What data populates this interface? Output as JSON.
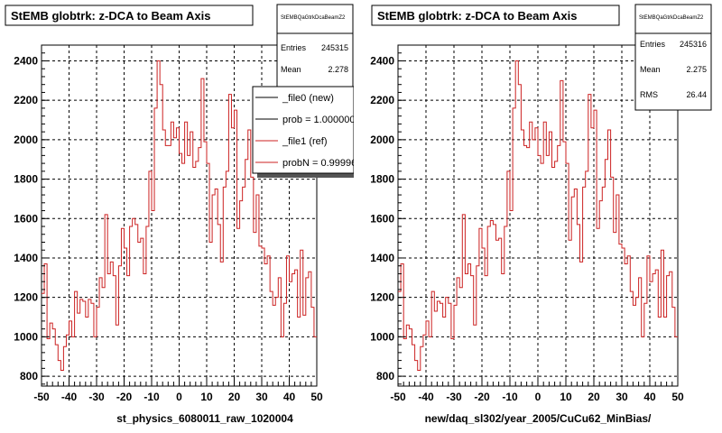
{
  "chart_data": [
    {
      "type": "line",
      "title": "StEMB globtrk: z-DCA to Beam Axis",
      "xlabel": "st_physics_6080011_raw_1020004",
      "ylabel": "",
      "xlim": [
        -50,
        50
      ],
      "ylim": [
        750,
        2480
      ],
      "x_ticks": [
        "-50",
        "-40",
        "-30",
        "-20",
        "-10",
        "0",
        "10",
        "20",
        "30",
        "40",
        "50"
      ],
      "y_ticks": [
        "800",
        "1000",
        "1200",
        "1400",
        "1600",
        "1800",
        "2000",
        "2200",
        "2400"
      ],
      "grid": true,
      "stats": {
        "name": "StEMBQaGtrkDcaBeamZ2",
        "rows": [
          {
            "label": "Entries",
            "value": "245315"
          },
          {
            "label": "Mean",
            "value": "2.278"
          }
        ]
      },
      "legend": {
        "placement": "top-right",
        "entries": [
          {
            "label": "_file0 (new)",
            "color": "#000000"
          },
          {
            "label": "prob = 1.000000",
            "color": "#000000"
          },
          {
            "label": "_file1 (ref)",
            "color": "#cc2222"
          },
          {
            "label": "probN = 0.999966",
            "color": "#cc2222"
          }
        ]
      },
      "bin_width": 1,
      "series": [
        {
          "color": "#cc2222",
          "values": [
            1220,
            1370,
            990,
            1070,
            1040,
            960,
            880,
            830,
            950,
            1010,
            1080,
            1000,
            1230,
            1120,
            1190,
            1180,
            1100,
            1190,
            1170,
            1000,
            1150,
            1300,
            1250,
            1620,
            1320,
            1380,
            1310,
            1060,
            1360,
            1550,
            1450,
            1310,
            1560,
            1600,
            1570,
            1480,
            1500,
            1320,
            1560,
            1840,
            1640,
            2160,
            2400,
            2280,
            2050,
            1970,
            1970,
            2090,
            2010,
            2060,
            1930,
            1880,
            2090,
            1920,
            2040,
            1860,
            1890,
            1960,
            2310,
            1990,
            1880,
            1480,
            1720,
            1750,
            1570,
            1380,
            1760,
            1840,
            2230,
            2060,
            2150,
            1550,
            1690,
            1760,
            1900,
            2050,
            1810,
            1530,
            1720,
            1460,
            1450,
            1370,
            1410,
            1230,
            1160,
            1200,
            1300,
            1000,
            1170,
            1410,
            1280,
            1320,
            1340,
            1100,
            1440,
            1110,
            1300,
            1330,
            1150,
            1000
          ]
        }
      ]
    },
    {
      "type": "line",
      "title": "StEMB globtrk: z-DCA to Beam Axis",
      "xlabel": "new/daq_sl302/year_2005/CuCu62_MinBias/",
      "ylabel": "",
      "xlim": [
        -50,
        50
      ],
      "ylim": [
        750,
        2480
      ],
      "x_ticks": [
        "-50",
        "-40",
        "-30",
        "-20",
        "-10",
        "0",
        "10",
        "20",
        "30",
        "40",
        "50"
      ],
      "y_ticks": [
        "800",
        "1000",
        "1200",
        "1400",
        "1600",
        "1800",
        "2000",
        "2200",
        "2400"
      ],
      "grid": true,
      "stats": {
        "name": "StEMBQaGtrkDcaBeamZ2",
        "rows": [
          {
            "label": "Entries",
            "value": "245316"
          },
          {
            "label": "Mean",
            "value": "2.275"
          },
          {
            "label": "RMS",
            "value": "26.44"
          }
        ]
      },
      "bin_width": 1,
      "series": [
        {
          "color": "#cc2222",
          "values": [
            1230,
            1370,
            990,
            1060,
            1040,
            960,
            880,
            830,
            950,
            1010,
            1080,
            1000,
            1230,
            1130,
            1180,
            1170,
            1100,
            1200,
            1170,
            990,
            1160,
            1300,
            1250,
            1620,
            1320,
            1370,
            1310,
            1060,
            1360,
            1550,
            1450,
            1310,
            1560,
            1590,
            1570,
            1490,
            1500,
            1320,
            1560,
            1840,
            1640,
            2160,
            2400,
            2280,
            2050,
            1970,
            1960,
            2090,
            2000,
            2060,
            1920,
            1880,
            2090,
            1920,
            2040,
            1860,
            1890,
            1970,
            2300,
            1990,
            1880,
            1490,
            1710,
            1750,
            1570,
            1380,
            1760,
            1840,
            2230,
            2060,
            2150,
            1550,
            1690,
            1760,
            1900,
            2050,
            1810,
            1530,
            1720,
            1470,
            1450,
            1370,
            1410,
            1230,
            1160,
            1200,
            1300,
            1000,
            1170,
            1410,
            1280,
            1320,
            1340,
            1100,
            1440,
            1100,
            1310,
            1330,
            1150,
            1000
          ]
        }
      ]
    }
  ]
}
